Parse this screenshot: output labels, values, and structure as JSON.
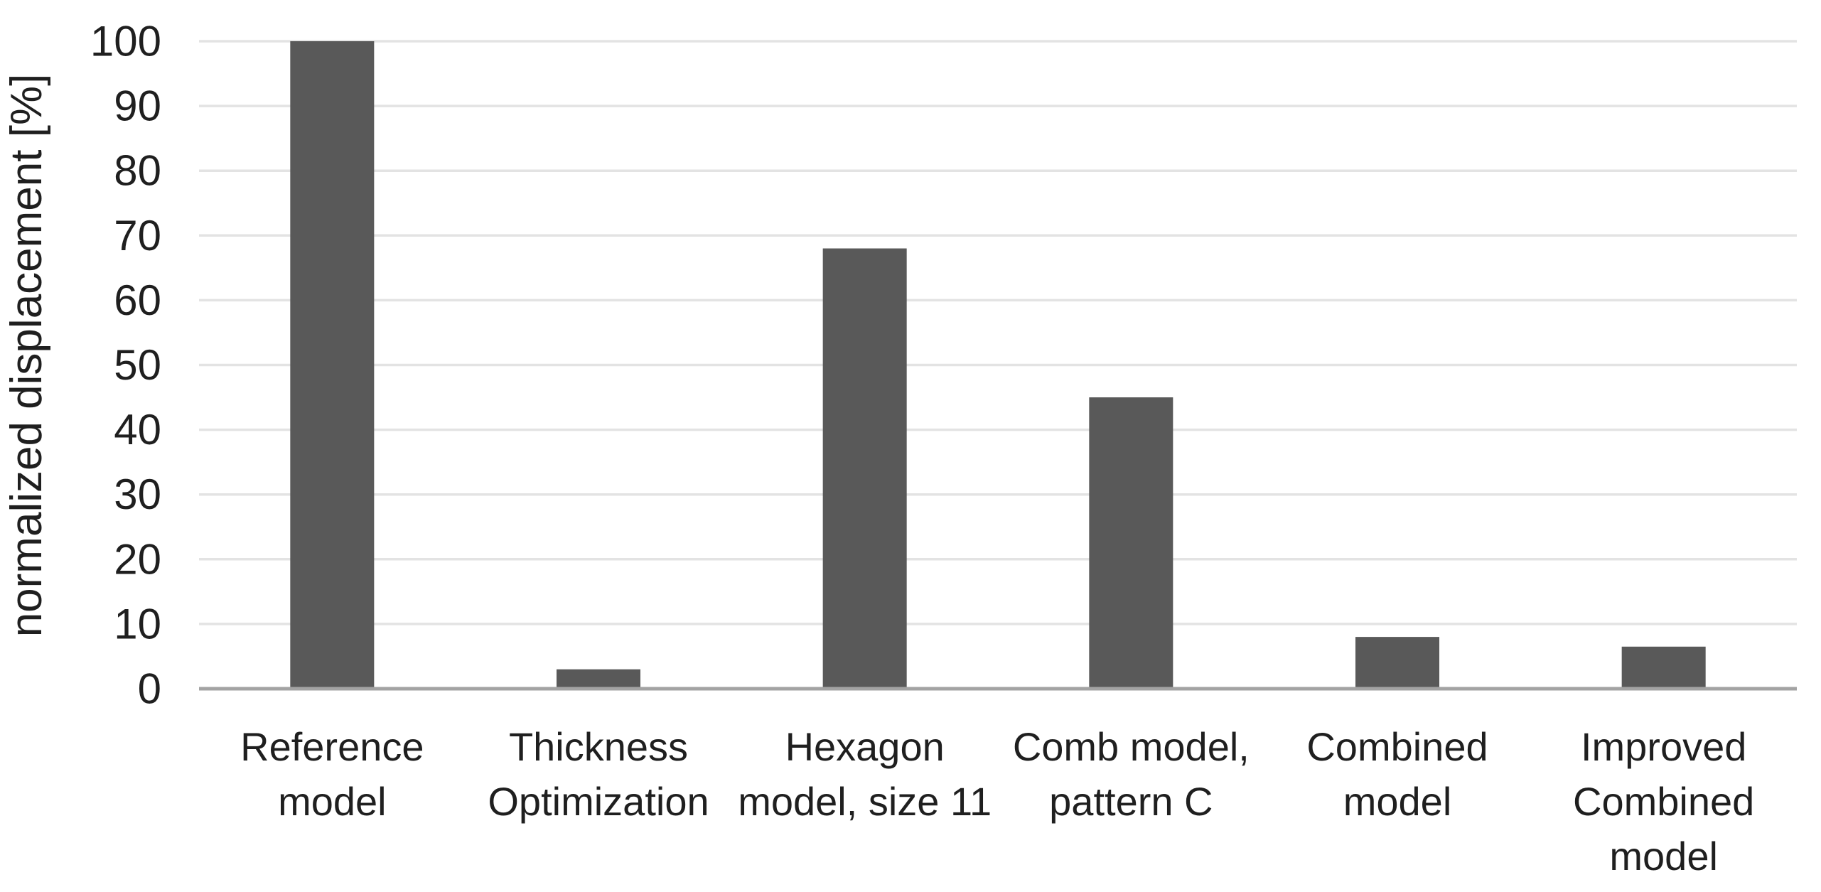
{
  "chart_data": {
    "type": "bar",
    "title": "",
    "xlabel": "",
    "ylabel": "normalized displacement [%]",
    "ylim": [
      0,
      100
    ],
    "yticks": [
      0,
      10,
      20,
      30,
      40,
      50,
      60,
      70,
      80,
      90,
      100
    ],
    "grid": "horizontal-light",
    "legend_position": "none",
    "categories": [
      "Reference model",
      "Thickness Optimization",
      "Hexagon model, size 11",
      "Comb model, pattern C",
      "Combined model",
      "Improved Combined model"
    ],
    "category_lines": [
      [
        "Reference",
        "model"
      ],
      [
        "Thickness",
        "Optimization"
      ],
      [
        "Hexagon",
        "model, size 11"
      ],
      [
        "Comb model,",
        "pattern C"
      ],
      [
        "Combined",
        "model"
      ],
      [
        "Improved",
        "Combined",
        "model"
      ]
    ],
    "values": [
      100,
      3,
      68,
      45,
      8,
      6.5
    ],
    "colors": {
      "bar": "#595959",
      "gridline": "#e3e3e3",
      "axis_line": "#a3a3a3",
      "text": "#1f1f1f",
      "background": "#ffffff"
    }
  }
}
